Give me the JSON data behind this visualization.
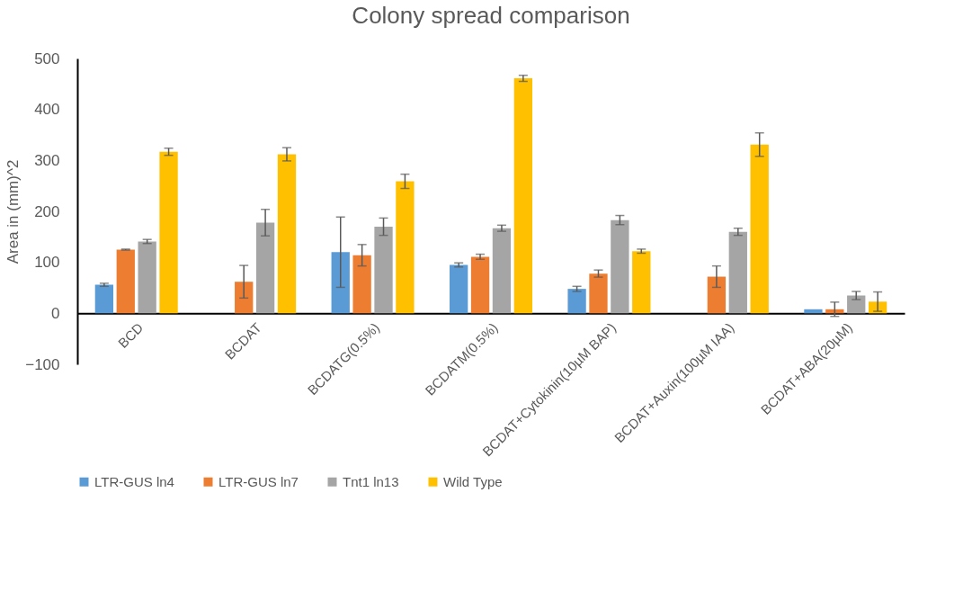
{
  "chart_data": {
    "type": "bar",
    "title": "Colony spread comparison",
    "ylabel": "Area in (mm)^2",
    "categories": [
      "BCD",
      "BCDAT",
      "BCDATG(0.5%)",
      "BCDATM(0.5%)",
      "BCDAT+Cytokinin(10µM BAP)",
      "BCDAT+Auxin(100µM IAA)",
      "BCDAT+ABA(20µM)"
    ],
    "series": [
      {
        "name": "LTR-GUS ln4",
        "color": "#5b9bd5",
        "values": [
          56,
          null,
          120,
          95,
          48,
          null,
          8
        ],
        "errors": [
          3,
          null,
          69,
          4,
          5,
          null,
          null
        ]
      },
      {
        "name": "LTR-GUS ln7",
        "color": "#ed7d31",
        "values": [
          125,
          62,
          114,
          111,
          78,
          72,
          8
        ],
        "errors": [
          1,
          32,
          21,
          5,
          7,
          21,
          14
        ]
      },
      {
        "name": "Tnt1 ln13",
        "color": "#a5a5a5",
        "values": [
          141,
          178,
          170,
          167,
          183,
          160,
          35
        ],
        "errors": [
          4,
          26,
          17,
          6,
          9,
          7,
          8
        ]
      },
      {
        "name": "Wild Type",
        "color": "#ffc000",
        "values": [
          317,
          312,
          259,
          461,
          122,
          331,
          23
        ],
        "errors": [
          7,
          13,
          14,
          6,
          4,
          23,
          19
        ]
      }
    ],
    "ylim": [
      -100,
      500
    ],
    "yticks": [
      -100,
      0,
      100,
      200,
      300,
      400,
      500
    ],
    "grid": false,
    "legend": "bottom"
  }
}
